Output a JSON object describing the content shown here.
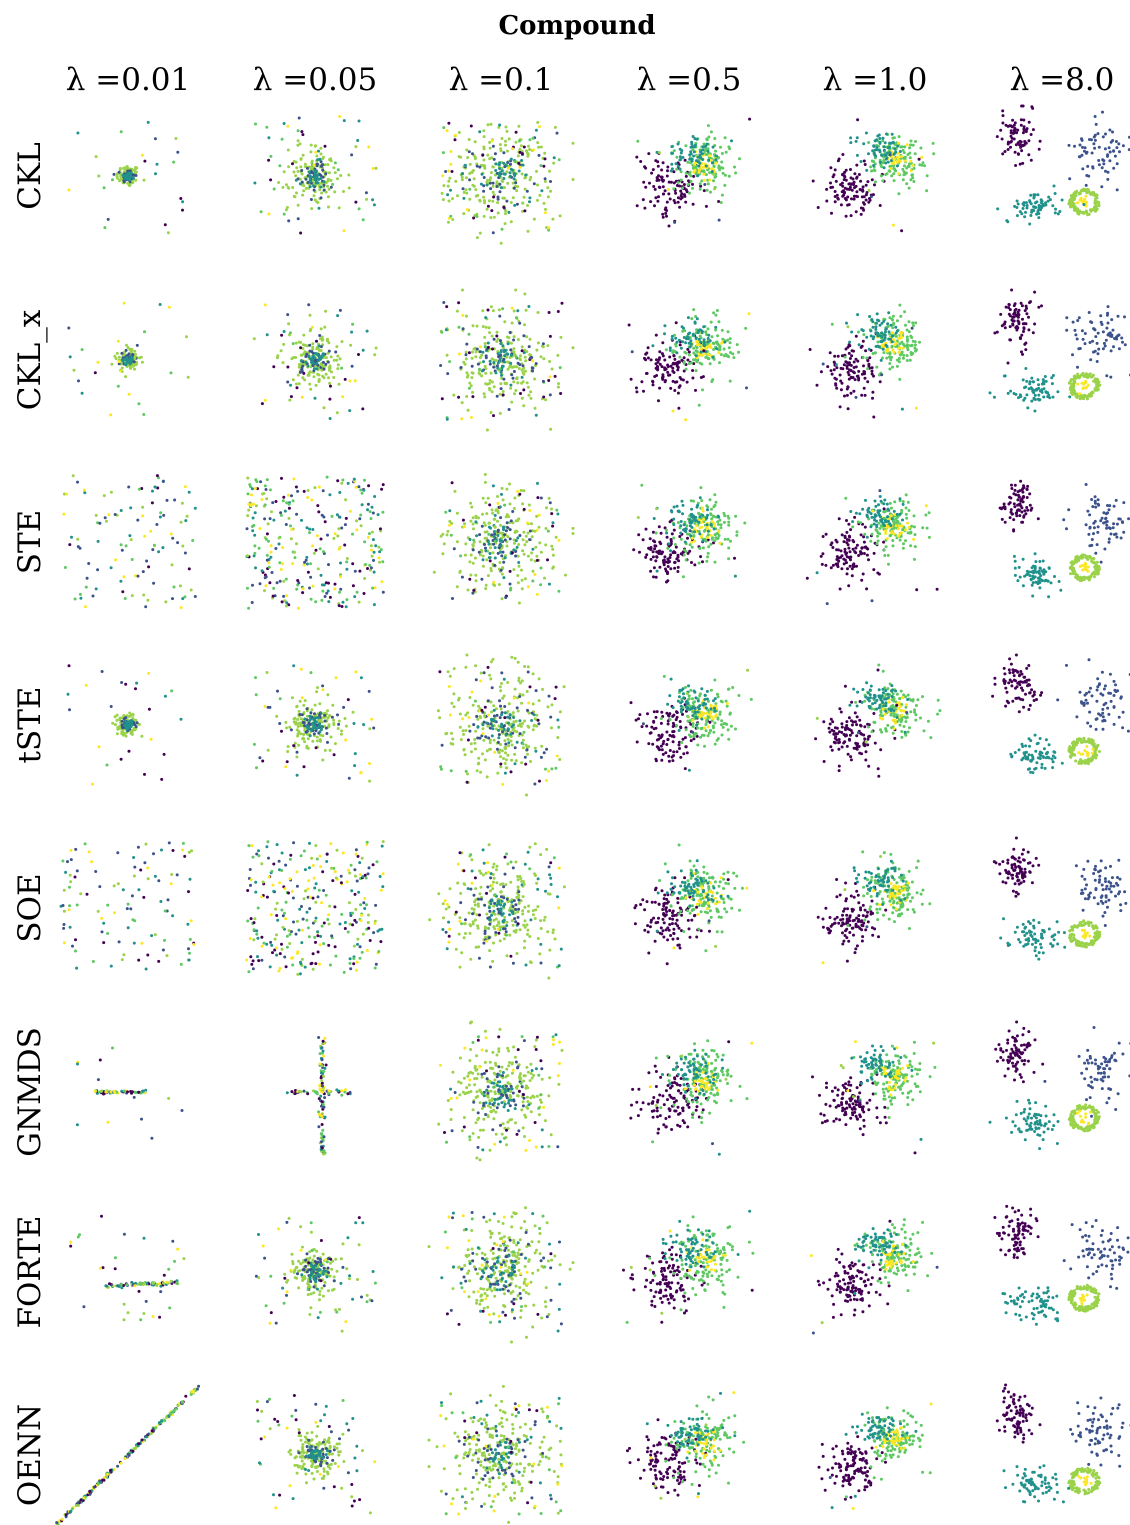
{
  "chart_data": {
    "type": "scatter",
    "title": "Compound",
    "layout": "small-multiples grid",
    "columns": [
      "λ =0.01",
      "λ =0.05",
      "λ =0.1",
      "λ =0.5",
      "λ =1.0",
      "λ =8.0"
    ],
    "rows": [
      "CKL",
      "CKL_x",
      "STE",
      "tSTE",
      "SOE",
      "GNMDS",
      "FORTE",
      "OENN"
    ],
    "axes_visible": false,
    "grid": false,
    "legend": "none",
    "colormap": "viridis",
    "point_classes": [
      "#440154",
      "#3b528b",
      "#21918c",
      "#5ec962",
      "#9ad34a",
      "#fde725"
    ]
  }
}
